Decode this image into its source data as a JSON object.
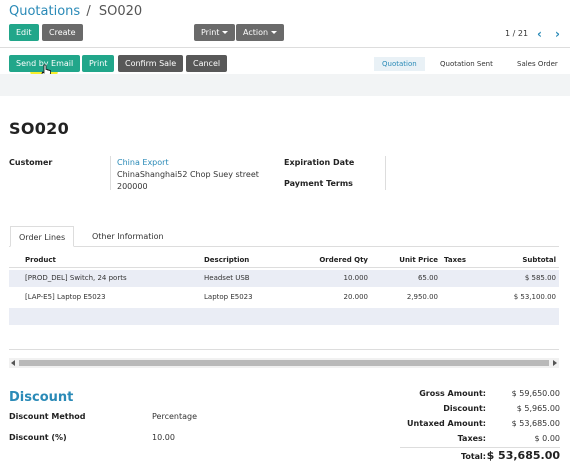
{
  "breadcrumb": {
    "parent": "Quotations",
    "separator": "/",
    "current": "SO020"
  },
  "toolbar": {
    "edit": "Edit",
    "create": "Create",
    "print": "Print",
    "action": "Action"
  },
  "pager": {
    "text": "1 / 21"
  },
  "status_buttons": {
    "send_by_email": "Send by Email",
    "print": "Print",
    "confirm_sale": "Confirm Sale",
    "cancel": "Cancel"
  },
  "stages": [
    "Quotation",
    "Quotation Sent",
    "Sales Order"
  ],
  "record": {
    "name": "SO020",
    "customer_label": "Customer",
    "customer_name": "China Export",
    "customer_addr1": "ChinaShanghai52 Chop Suey street",
    "customer_addr2": "200000",
    "expiration_label": "Expiration Date",
    "payment_terms_label": "Payment Terms"
  },
  "tabs": [
    "Order Lines",
    "Other Information"
  ],
  "table": {
    "headers": [
      "Product",
      "Description",
      "Ordered Qty",
      "Unit Price",
      "Taxes",
      "Subtotal"
    ],
    "rows": [
      [
        "[PROD_DEL] Switch, 24 ports",
        "Headset USB",
        "10.000",
        "65.00",
        "",
        "$ 585.00"
      ],
      [
        "[LAP-E5] Laptop E5023",
        "Laptop E5023",
        "20.000",
        "2,950.00",
        "",
        "$ 53,100.00"
      ]
    ]
  },
  "discount": {
    "heading": "Discount",
    "method_label": "Discount Method",
    "method_value": "Percentage",
    "pct_label": "Discount (%)",
    "pct_value": "10.00"
  },
  "totals": {
    "gross_label": "Gross Amount:",
    "gross": "$ 59,650.00",
    "discount_label": "Discount:",
    "discount": "$ 5,965.00",
    "untaxed_label": "Untaxed Amount:",
    "untaxed": "$ 53,685.00",
    "taxes_label": "Taxes:",
    "taxes": "$ 0.00",
    "total_label": "Total:",
    "total": "$ 53,685.00"
  },
  "colors": {
    "accent": "#2a8ab7",
    "primary_button": "#21a68a",
    "secondary_button": "#6a6a6a"
  }
}
